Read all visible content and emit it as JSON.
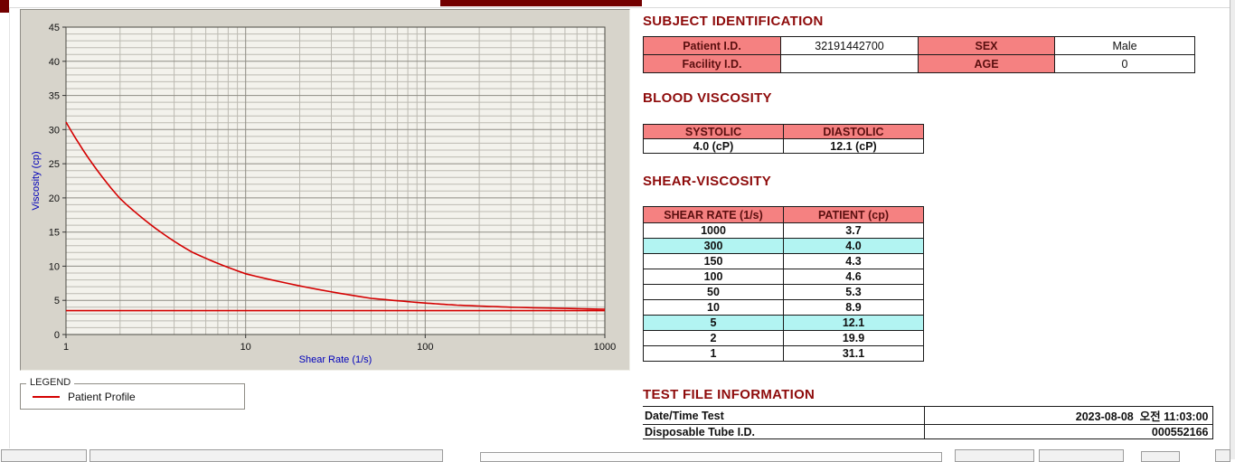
{
  "chart": {
    "ylabel": "Viscosity (cp)",
    "xlabel": "Shear Rate (1/s)",
    "y_ticks": [
      0,
      5,
      10,
      15,
      20,
      25,
      30,
      35,
      40,
      45
    ],
    "x_ticks": [
      1,
      10,
      100,
      1000
    ],
    "legend": {
      "title": "LEGEND",
      "series_label": "Patient Profile"
    }
  },
  "chart_data": {
    "type": "line",
    "x_scale": "log",
    "x": [
      1,
      2,
      5,
      10,
      50,
      100,
      150,
      300,
      1000
    ],
    "series": [
      {
        "name": "Patient Profile",
        "values": [
          31.1,
          19.9,
          12.1,
          8.9,
          5.3,
          4.6,
          4.3,
          4.0,
          3.7
        ]
      }
    ],
    "reference_line_y": 3.5,
    "title": "",
    "xlabel": "Shear Rate (1/s)",
    "ylabel": "Viscosity (cp)",
    "xlim": [
      1,
      1000
    ],
    "ylim": [
      0,
      45
    ],
    "grid": true,
    "legend_position": "below-left"
  },
  "subject": {
    "heading": "SUBJECT IDENTIFICATION",
    "rows": [
      {
        "label1": "Patient I.D.",
        "value1": "32191442700",
        "label2": "SEX",
        "value2": "Male"
      },
      {
        "label1": "Facility I.D.",
        "value1": "",
        "label2": "AGE",
        "value2": "0"
      }
    ]
  },
  "blood_viscosity": {
    "heading": "BLOOD VISCOSITY",
    "columns": [
      "SYSTOLIC",
      "DIASTOLIC"
    ],
    "values": [
      "4.0 (cP)",
      "12.1 (cP)"
    ]
  },
  "shear_viscosity": {
    "heading": "SHEAR-VISCOSITY",
    "columns": [
      "SHEAR RATE (1/s)",
      "PATIENT (cp)"
    ],
    "rows": [
      {
        "rate": "1000",
        "value": "3.7",
        "highlight": false
      },
      {
        "rate": "300",
        "value": "4.0",
        "highlight": true
      },
      {
        "rate": "150",
        "value": "4.3",
        "highlight": false
      },
      {
        "rate": "100",
        "value": "4.6",
        "highlight": false
      },
      {
        "rate": "50",
        "value": "5.3",
        "highlight": false
      },
      {
        "rate": "10",
        "value": "8.9",
        "highlight": false
      },
      {
        "rate": "5",
        "value": "12.1",
        "highlight": true
      },
      {
        "rate": "2",
        "value": "19.9",
        "highlight": false
      },
      {
        "rate": "1",
        "value": "31.1",
        "highlight": false
      }
    ]
  },
  "test_file": {
    "heading": "TEST FILE INFORMATION",
    "rows": [
      {
        "label": "Date/Time Test",
        "value": "2023-08-08  오전 11:03:00"
      },
      {
        "label": "Disposable Tube I.D.",
        "value": "000552166"
      }
    ]
  },
  "colors": {
    "heading_text": "#8e0b0b",
    "table_header_bg": "#f58181",
    "table_header_text": "#5a0f0f",
    "row_highlight_bg": "#b2f4f2",
    "series_line": "#d40000",
    "axis_title_text": "#0000bb",
    "top_bar": "#730000"
  }
}
